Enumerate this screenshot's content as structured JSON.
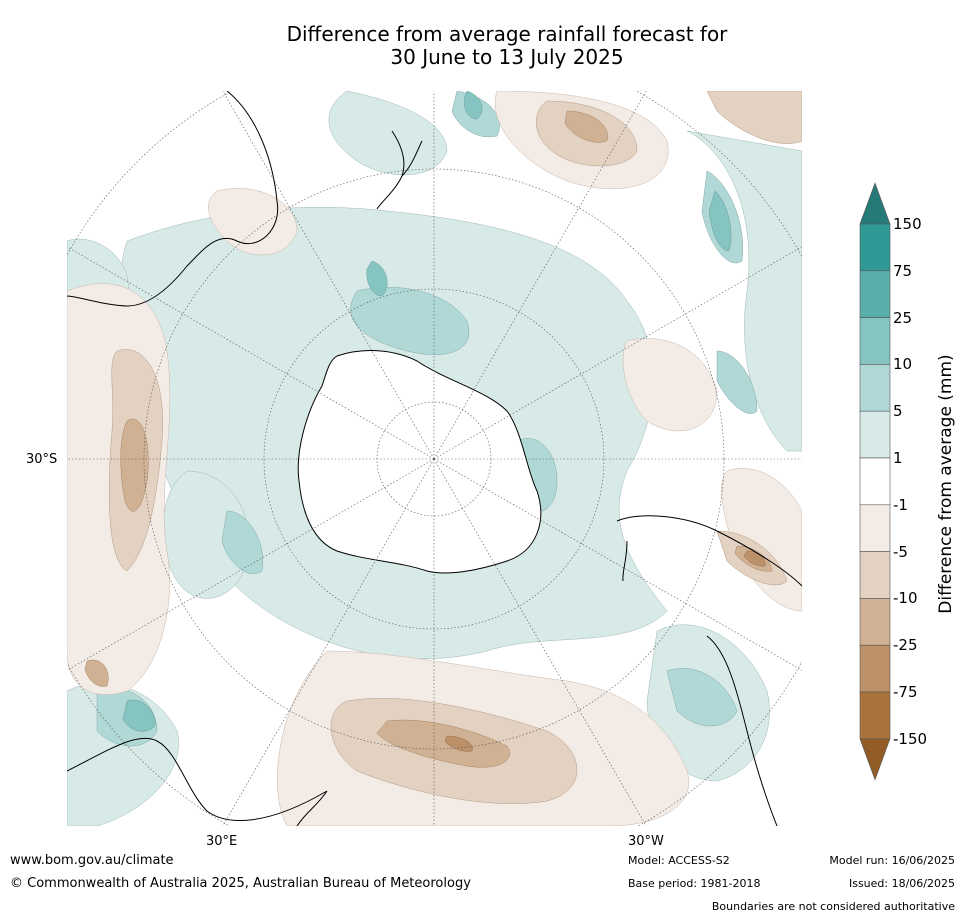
{
  "title": {
    "line1": "Difference from average rainfall forecast for",
    "line2": "30 June to 13 July 2025"
  },
  "map": {
    "projection": "south-polar-stereographic",
    "graticule_labels": {
      "lat_30s": "30°S",
      "lon_30e": "30°E",
      "lon_30w": "30°W"
    }
  },
  "colorbar": {
    "title": "Difference from average (mm)",
    "labels": [
      "150",
      "75",
      "25",
      "10",
      "5",
      "1",
      "-1",
      "-5",
      "-10",
      "-25",
      "-75",
      "-150"
    ],
    "colors": {
      "above_150": "#267b78",
      "75_150": "#2f9a95",
      "25_75": "#5aaeaa",
      "10_25": "#85c4c1",
      "5_10": "#b0d8d6",
      "1_5": "#d7eae8",
      "neutral": "#ffffff",
      "m5_m1": "#f3ebe5",
      "m10_m5": "#e3d1c1",
      "m25_m10": "#d0b193",
      "m75_m25": "#bc9068",
      "m150_m75": "#aa733e",
      "below_m150": "#915c25"
    }
  },
  "footer": {
    "url": "www.bom.gov.au/climate",
    "copyright": "© Commonwealth of Australia 2025, Australian Bureau of Meteorology",
    "model": "Model: ACCESS-S2",
    "base_period": "Base period: 1981-2018",
    "model_run": "Model run: 16/06/2025",
    "issued": "Issued: 18/06/2025",
    "boundaries": "Boundaries are not considered authoritative"
  }
}
